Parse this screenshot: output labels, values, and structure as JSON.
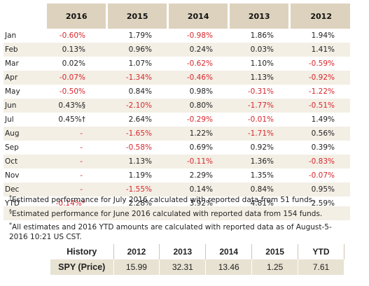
{
  "table": {
    "headers": [
      "2016",
      "2015",
      "2014",
      "2013",
      "2012"
    ],
    "rows": [
      {
        "label": "Jan",
        "values": [
          "-0.60%",
          "1.79%",
          "-0.98%",
          "1.86%",
          "1.94%"
        ]
      },
      {
        "label": "Feb",
        "values": [
          "0.13%",
          "0.96%",
          "0.24%",
          "0.03%",
          "1.41%"
        ]
      },
      {
        "label": "Mar",
        "values": [
          "0.02%",
          "1.07%",
          "-0.62%",
          "1.10%",
          "-0.59%"
        ]
      },
      {
        "label": "Apr",
        "values": [
          "-0.07%",
          "-1.34%",
          "-0.46%",
          "1.13%",
          "-0.92%"
        ]
      },
      {
        "label": "May",
        "values": [
          "-0.50%",
          "0.84%",
          "0.98%",
          "-0.31%",
          "-1.22%"
        ]
      },
      {
        "label": "Jun",
        "values": [
          "0.43%§",
          "-2.10%",
          "0.80%",
          "-1.77%",
          "-0.51%"
        ]
      },
      {
        "label": "Jul",
        "values": [
          "0.45%†",
          "2.64%",
          "-0.29%",
          "-0.01%",
          "1.49%"
        ]
      },
      {
        "label": "Aug",
        "values": [
          "-",
          "-1.65%",
          "1.22%",
          "-1.71%",
          "0.56%"
        ]
      },
      {
        "label": "Sep",
        "values": [
          "-",
          "-0.58%",
          "0.69%",
          "0.92%",
          "0.39%"
        ]
      },
      {
        "label": "Oct",
        "values": [
          "-",
          "1.13%",
          "-0.11%",
          "1.36%",
          "-0.83%"
        ]
      },
      {
        "label": "Nov",
        "values": [
          "-",
          "1.19%",
          "2.29%",
          "1.35%",
          "-0.07%"
        ]
      },
      {
        "label": "Dec",
        "values": [
          "-",
          "-1.55%",
          "0.14%",
          "0.84%",
          "0.95%"
        ]
      },
      {
        "label": "YTD",
        "values": [
          "-0.14%*",
          "2.28%",
          "3.92%",
          "4.81%",
          "2.59%"
        ]
      }
    ]
  },
  "notes": [
    {
      "mark": "†",
      "text": "Estimated performance for July 2016 calculated with reported data from 51 funds."
    },
    {
      "mark": "§",
      "text": "Estimated performance for June 2016 calculated with reported data from 154 funds."
    },
    {
      "mark": "*",
      "text": "All estimates and 2016 YTD amounts are calculated with reported data as of August-5-2016 10:21 US CST."
    }
  ],
  "history": {
    "header_label": "History",
    "columns": [
      "2012",
      "2013",
      "2014",
      "2015",
      "YTD"
    ],
    "row_label": "SPY (Price)",
    "values": [
      "15.99",
      "32.31",
      "13.46",
      "1.25",
      "7.61"
    ]
  },
  "colors": {
    "negative": "#d9262c",
    "header_bg": "#ddd2bd",
    "stripe_bg": "#f3efe5",
    "history_row_bg": "#e8e2d2"
  }
}
